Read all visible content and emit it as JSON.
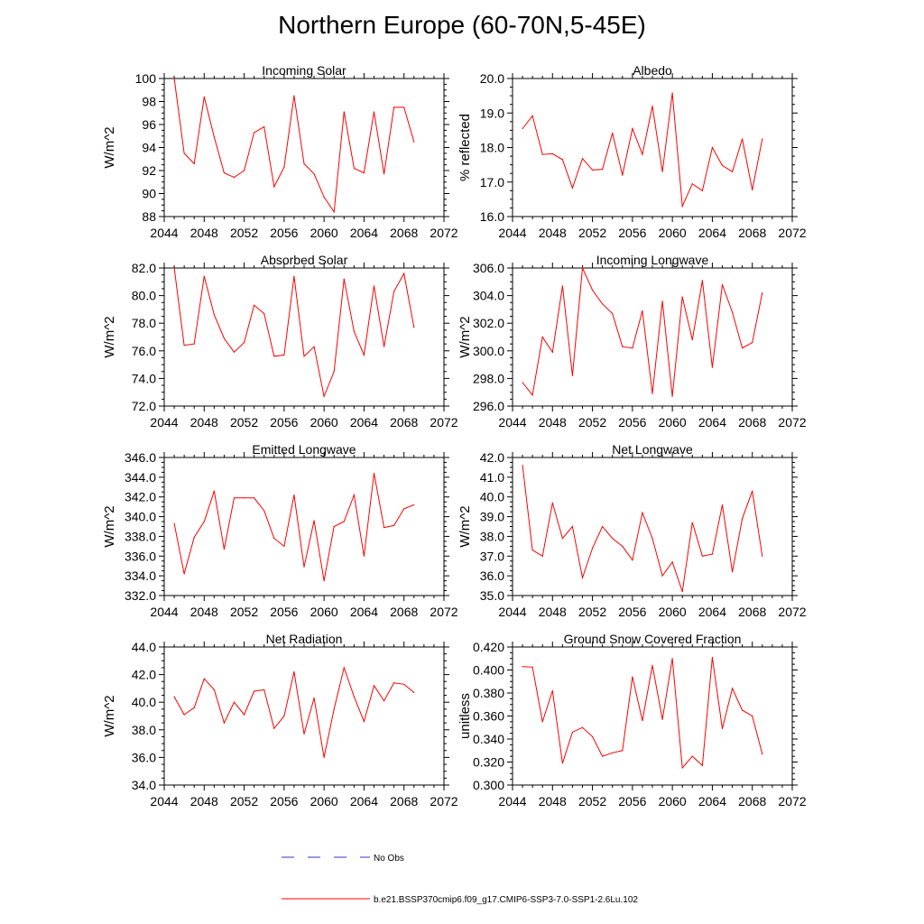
{
  "figure_title": "Northern Europe (60-70N,5-45E)",
  "legend": {
    "obs_label": "No Obs",
    "model_label": "b.e21.BSSP370cmip6.f09_g17.CMIP6-SSP3-7.0-SSP1-2.6Lu.102",
    "obs_color": "#3333cc",
    "model_color": "#ff0000"
  },
  "chart_data": [
    {
      "type": "line",
      "title": "Incoming Solar",
      "ylabel": "W/m^2",
      "xlim": [
        2044,
        2072
      ],
      "ylim": [
        88,
        100
      ],
      "xticks": [
        "2044",
        "2048",
        "2052",
        "2056",
        "2060",
        "2064",
        "2068",
        "2072"
      ],
      "yticks": [
        "88",
        "90",
        "92",
        "94",
        "96",
        "98",
        "100"
      ],
      "x": [
        2045,
        2046,
        2047,
        2048,
        2049,
        2050,
        2051,
        2052,
        2053,
        2054,
        2055,
        2056,
        2057,
        2058,
        2059,
        2060,
        2061,
        2062,
        2063,
        2064,
        2065,
        2066,
        2067,
        2068,
        2069
      ],
      "values": [
        100.0,
        93.5,
        92.6,
        98.4,
        94.9,
        91.8,
        91.4,
        92.0,
        95.3,
        95.8,
        90.6,
        92.3,
        98.5,
        92.6,
        91.7,
        89.7,
        88.4,
        97.1,
        92.2,
        91.8,
        97.1,
        91.7,
        97.5,
        97.5,
        94.5
      ]
    },
    {
      "type": "line",
      "title": "Albedo",
      "ylabel": "% reflected",
      "xlim": [
        2044,
        2072
      ],
      "ylim": [
        16.0,
        20.0
      ],
      "xticks": [
        "2044",
        "2048",
        "2052",
        "2056",
        "2060",
        "2064",
        "2068",
        "2072"
      ],
      "yticks": [
        "16.0",
        "17.0",
        "18.0",
        "19.0",
        "20.0"
      ],
      "x": [
        2045,
        2046,
        2047,
        2048,
        2049,
        2050,
        2051,
        2052,
        2053,
        2054,
        2055,
        2056,
        2057,
        2058,
        2059,
        2060,
        2061,
        2062,
        2063,
        2064,
        2065,
        2066,
        2067,
        2068,
        2069
      ],
      "values": [
        18.55,
        18.92,
        17.8,
        17.82,
        17.65,
        16.83,
        17.68,
        17.35,
        17.37,
        18.42,
        17.2,
        18.55,
        17.8,
        19.2,
        17.3,
        19.58,
        16.3,
        16.95,
        16.75,
        18.0,
        17.48,
        17.3,
        18.25,
        16.77,
        18.25
      ]
    },
    {
      "type": "line",
      "title": "Absorbed Solar",
      "ylabel": "W/m^2",
      "xlim": [
        2044,
        2072
      ],
      "ylim": [
        72.0,
        82.0
      ],
      "xticks": [
        "2044",
        "2048",
        "2052",
        "2056",
        "2060",
        "2064",
        "2068",
        "2072"
      ],
      "yticks": [
        "72.0",
        "74.0",
        "76.0",
        "78.0",
        "80.0",
        "82.0"
      ],
      "x": [
        2045,
        2046,
        2047,
        2048,
        2049,
        2050,
        2051,
        2052,
        2053,
        2054,
        2055,
        2056,
        2057,
        2058,
        2059,
        2060,
        2061,
        2062,
        2063,
        2064,
        2065,
        2066,
        2067,
        2068,
        2069
      ],
      "values": [
        82.0,
        76.4,
        76.5,
        81.4,
        78.6,
        76.9,
        75.9,
        76.6,
        79.3,
        78.7,
        75.6,
        75.7,
        81.4,
        75.6,
        76.3,
        72.7,
        74.5,
        81.2,
        77.4,
        75.7,
        80.7,
        76.3,
        80.3,
        81.6,
        77.7
      ]
    },
    {
      "type": "line",
      "title": "Incoming Longwave",
      "ylabel": "W/m^2",
      "xlim": [
        2044,
        2072
      ],
      "ylim": [
        296.0,
        306.0
      ],
      "xticks": [
        "2044",
        "2048",
        "2052",
        "2056",
        "2060",
        "2064",
        "2068",
        "2072"
      ],
      "yticks": [
        "296.0",
        "298.0",
        "300.0",
        "302.0",
        "304.0",
        "306.0"
      ],
      "x": [
        2045,
        2046,
        2047,
        2048,
        2049,
        2050,
        2051,
        2052,
        2053,
        2054,
        2055,
        2056,
        2057,
        2058,
        2059,
        2060,
        2061,
        2062,
        2063,
        2064,
        2065,
        2066,
        2067,
        2068,
        2069
      ],
      "values": [
        297.7,
        296.8,
        301.0,
        299.9,
        304.7,
        298.2,
        306.0,
        304.4,
        303.4,
        302.7,
        300.3,
        300.2,
        302.9,
        296.9,
        303.6,
        296.7,
        303.9,
        300.8,
        305.1,
        298.8,
        304.8,
        302.8,
        300.2,
        300.6,
        304.2
      ]
    },
    {
      "type": "line",
      "title": "Emitted Longwave",
      "ylabel": "W/m^2",
      "xlim": [
        2044,
        2072
      ],
      "ylim": [
        332.0,
        346.0
      ],
      "xticks": [
        "2044",
        "2048",
        "2052",
        "2056",
        "2060",
        "2064",
        "2068",
        "2072"
      ],
      "yticks": [
        "332.0",
        "334.0",
        "336.0",
        "338.0",
        "340.0",
        "342.0",
        "344.0",
        "346.0"
      ],
      "x": [
        2045,
        2046,
        2047,
        2048,
        2049,
        2050,
        2051,
        2052,
        2053,
        2054,
        2055,
        2056,
        2057,
        2058,
        2059,
        2060,
        2061,
        2062,
        2063,
        2064,
        2065,
        2066,
        2067,
        2068,
        2069
      ],
      "values": [
        339.3,
        334.2,
        337.9,
        339.5,
        342.6,
        336.7,
        341.9,
        341.9,
        341.9,
        340.6,
        337.8,
        337.0,
        342.2,
        334.9,
        339.6,
        333.5,
        339.0,
        339.5,
        342.2,
        336.0,
        344.4,
        338.9,
        339.1,
        340.8,
        341.2
      ]
    },
    {
      "type": "line",
      "title": "Net Longwave",
      "ylabel": "W/m^2",
      "xlim": [
        2044,
        2072
      ],
      "ylim": [
        35.0,
        42.0
      ],
      "xticks": [
        "2044",
        "2048",
        "2052",
        "2056",
        "2060",
        "2064",
        "2068",
        "2072"
      ],
      "yticks": [
        "35.0",
        "36.0",
        "37.0",
        "38.0",
        "39.0",
        "40.0",
        "41.0",
        "42.0"
      ],
      "x": [
        2045,
        2046,
        2047,
        2048,
        2049,
        2050,
        2051,
        2052,
        2053,
        2054,
        2055,
        2056,
        2057,
        2058,
        2059,
        2060,
        2061,
        2062,
        2063,
        2064,
        2065,
        2066,
        2067,
        2068,
        2069
      ],
      "values": [
        41.6,
        37.3,
        37.0,
        39.7,
        37.9,
        38.5,
        35.9,
        37.4,
        38.5,
        37.9,
        37.5,
        36.8,
        39.2,
        37.9,
        36.0,
        36.7,
        35.2,
        38.7,
        37.0,
        37.1,
        39.6,
        36.2,
        38.9,
        40.3,
        37.0
      ]
    },
    {
      "type": "line",
      "title": "Net Radiation",
      "ylabel": "W/m^2",
      "xlim": [
        2044,
        2072
      ],
      "ylim": [
        34.0,
        44.0
      ],
      "xticks": [
        "2044",
        "2048",
        "2052",
        "2056",
        "2060",
        "2064",
        "2068",
        "2072"
      ],
      "yticks": [
        "34.0",
        "36.0",
        "38.0",
        "40.0",
        "42.0",
        "44.0"
      ],
      "x": [
        2045,
        2046,
        2047,
        2048,
        2049,
        2050,
        2051,
        2052,
        2053,
        2054,
        2055,
        2056,
        2057,
        2058,
        2059,
        2060,
        2061,
        2062,
        2063,
        2064,
        2065,
        2066,
        2067,
        2068,
        2069
      ],
      "values": [
        40.4,
        39.1,
        39.6,
        41.7,
        40.9,
        38.5,
        40.0,
        39.1,
        40.8,
        40.9,
        38.1,
        39.0,
        42.2,
        37.7,
        40.3,
        36.0,
        39.5,
        42.5,
        40.4,
        38.6,
        41.2,
        40.1,
        41.4,
        41.3,
        40.7
      ]
    },
    {
      "type": "line",
      "title": "Ground Snow Covered Fraction",
      "ylabel": "unitless",
      "xlim": [
        2044,
        2072
      ],
      "ylim": [
        0.3,
        0.42
      ],
      "xticks": [
        "2044",
        "2048",
        "2052",
        "2056",
        "2060",
        "2064",
        "2068",
        "2072"
      ],
      "yticks": [
        "0.300",
        "0.320",
        "0.340",
        "0.360",
        "0.380",
        "0.400",
        "0.420"
      ],
      "x": [
        2045,
        2046,
        2047,
        2048,
        2049,
        2050,
        2051,
        2052,
        2053,
        2054,
        2055,
        2056,
        2057,
        2058,
        2059,
        2060,
        2061,
        2062,
        2063,
        2064,
        2065,
        2066,
        2067,
        2068,
        2069
      ],
      "values": [
        0.403,
        0.4025,
        0.355,
        0.382,
        0.319,
        0.346,
        0.35,
        0.342,
        0.325,
        0.328,
        0.33,
        0.394,
        0.356,
        0.404,
        0.357,
        0.41,
        0.315,
        0.325,
        0.317,
        0.411,
        0.349,
        0.384,
        0.365,
        0.36,
        0.327
      ]
    }
  ]
}
